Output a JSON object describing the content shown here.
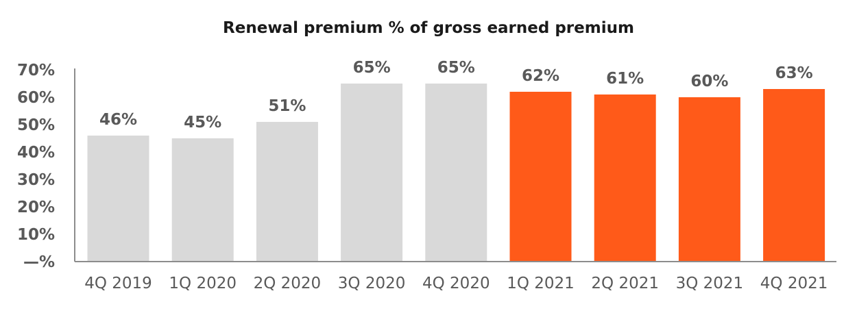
{
  "chart_data": {
    "type": "bar",
    "title": "Renewal premium % of gross earned premium",
    "categories": [
      "4Q 2019",
      "1Q 2020",
      "2Q 2020",
      "3Q 2020",
      "4Q 2020",
      "1Q 2021",
      "2Q 2021",
      "3Q 2021",
      "4Q 2021"
    ],
    "values": [
      46,
      45,
      51,
      65,
      65,
      62,
      61,
      60,
      63
    ],
    "data_labels": [
      "46%",
      "45%",
      "51%",
      "65%",
      "65%",
      "62%",
      "61%",
      "60%",
      "63%"
    ],
    "bar_colors": [
      "#d9d9d9",
      "#d9d9d9",
      "#d9d9d9",
      "#d9d9d9",
      "#d9d9d9",
      "#ff5a19",
      "#ff5a19",
      "#ff5a19",
      "#ff5a19"
    ],
    "yticks": [
      0,
      10,
      20,
      30,
      40,
      50,
      60,
      70
    ],
    "ytick_labels": [
      "—%",
      "10%",
      "20%",
      "30%",
      "40%",
      "50%",
      "60%",
      "70%"
    ],
    "ylim": [
      0,
      70
    ],
    "xlabel": "",
    "ylabel": "",
    "grid": false,
    "legend": "none"
  },
  "colors": {
    "gray_bar": "#d9d9d9",
    "accent_bar": "#ff5a19",
    "axis": "#8c8c8c",
    "text": "#595959"
  }
}
